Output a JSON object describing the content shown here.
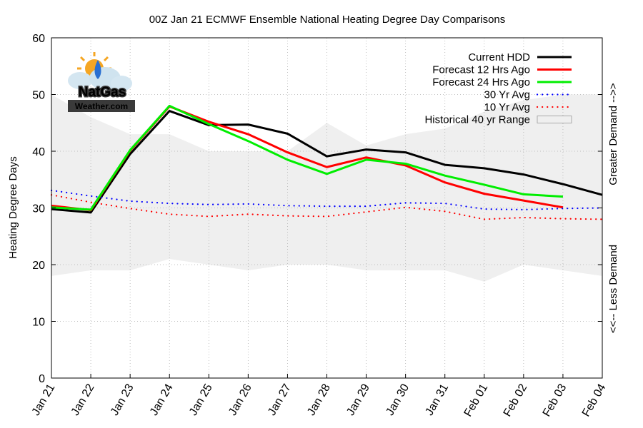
{
  "chart_data": {
    "type": "line",
    "title": "00Z Jan 21 ECMWF Ensemble National Heating Degree Day Comparisons",
    "xlabel": "",
    "ylabel": "Heating Degree Days",
    "right_label_top": "Greater Demand -->>",
    "right_label_bottom": "<<-- Less Demand",
    "ylim": [
      0,
      60
    ],
    "yticks": [
      0,
      10,
      20,
      30,
      40,
      50,
      60
    ],
    "grid": true,
    "legend_position": "top-right",
    "categories": [
      "Jan 21",
      "Jan 22",
      "Jan 23",
      "Jan 24",
      "Jan 25",
      "Jan 26",
      "Jan 27",
      "Jan 28",
      "Jan 29",
      "Jan 30",
      "Jan 31",
      "Feb 01",
      "Feb 02",
      "Feb 03",
      "Feb 04"
    ],
    "range": {
      "name": "Historical 40 yr Range",
      "color": "#efefef",
      "low": [
        18,
        19,
        19,
        21,
        20,
        19,
        20,
        20,
        19,
        19,
        19,
        17,
        20,
        19,
        18
      ],
      "high": [
        50,
        46,
        43,
        43,
        40,
        40,
        40,
        45,
        41,
        43,
        44,
        47,
        49,
        50,
        50
      ]
    },
    "series": [
      {
        "name": "Current HDD",
        "color": "#000000",
        "style": "solid",
        "values": [
          29.8,
          29.2,
          39.5,
          47.1,
          44.6,
          44.7,
          43.1,
          39.1,
          40.3,
          39.8,
          37.6,
          37.0,
          35.9,
          34.2,
          32.3
        ]
      },
      {
        "name": "Forecast 12 Hrs Ago",
        "color": "#ff0000",
        "style": "solid",
        "values": [
          30.4,
          29.6,
          40.1,
          47.9,
          45.2,
          43.0,
          39.8,
          37.2,
          38.9,
          37.5,
          34.5,
          32.5,
          31.3,
          30.1,
          null
        ]
      },
      {
        "name": "Forecast 24 Hrs Ago",
        "color": "#00ee00",
        "style": "solid",
        "values": [
          30.1,
          29.7,
          40.2,
          48.0,
          44.8,
          41.8,
          38.5,
          36.0,
          38.5,
          37.8,
          35.7,
          34.1,
          32.4,
          32.0,
          null
        ]
      },
      {
        "name": "30 Yr Avg",
        "color": "#0000ff",
        "style": "dotted",
        "values": [
          33.1,
          32.1,
          31.2,
          30.8,
          30.6,
          30.7,
          30.4,
          30.3,
          30.3,
          30.9,
          30.8,
          29.8,
          29.7,
          29.9,
          30.0
        ]
      },
      {
        "name": "10 Yr Avg",
        "color": "#ff0000",
        "style": "dotted",
        "values": [
          32.3,
          31.0,
          29.9,
          28.9,
          28.5,
          28.9,
          28.6,
          28.5,
          29.3,
          30.1,
          29.4,
          28.0,
          28.3,
          28.1,
          28.0
        ]
      }
    ]
  },
  "logo": {
    "line1": "NatGas",
    "line2": "Weather.com"
  }
}
